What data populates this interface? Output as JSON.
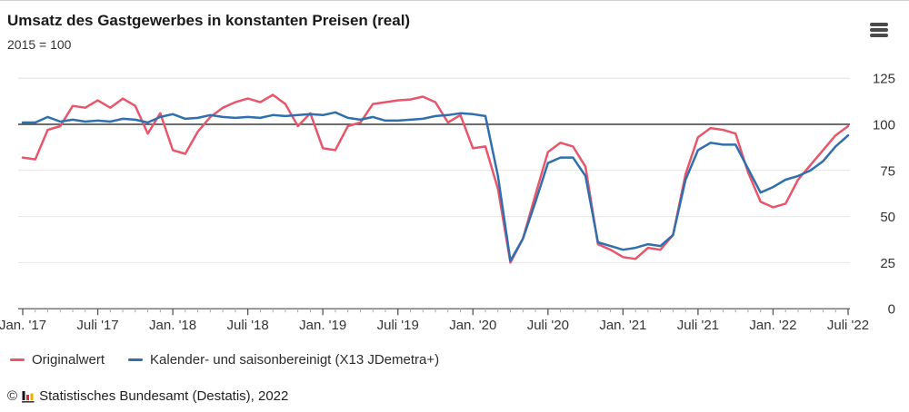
{
  "header": {
    "title": "Umsatz des Gastgewerbes in konstanten Preisen (real)",
    "subtitle": "2015 = 100"
  },
  "footer": {
    "copyright_symbol": "©",
    "text": "Statistisches Bundesamt (Destatis), 2022",
    "logo_colors": [
      "#161616",
      "#dd2b2b",
      "#f0ad00"
    ]
  },
  "chart_data": {
    "type": "line",
    "title": "Umsatz des Gastgewerbes in konstanten Preisen (real)",
    "subtitle": "2015 = 100",
    "grid": true,
    "legend_position": "bottom-left",
    "x_axis": {
      "unit": "month",
      "months_total": 67,
      "start": "Jan. '17",
      "end": "Juli '22",
      "tick_labels": [
        "Jan. '17",
        "Juli '17",
        "Jan. '18",
        "Juli '18",
        "Jan. '19",
        "Juli '19",
        "Jan. '20",
        "Juli '20",
        "Jan. '21",
        "Juli '21",
        "Jan. '22",
        "Juli '22"
      ],
      "tick_month_indices": [
        0,
        6,
        12,
        18,
        24,
        30,
        36,
        42,
        48,
        54,
        60,
        66
      ]
    },
    "y_axis": {
      "side": "right",
      "min": 0,
      "max": 131,
      "ticks": [
        0,
        25,
        50,
        75,
        100,
        125
      ],
      "baseline": 100
    },
    "series": [
      {
        "name": "Originalwert",
        "color": "#e8566b",
        "values": [
          82,
          81,
          97,
          99,
          110,
          109,
          113,
          109,
          114,
          110,
          95,
          106,
          86,
          84,
          96,
          104,
          109,
          112,
          114,
          112,
          116,
          111,
          99,
          106,
          87,
          86,
          99,
          101,
          111,
          112,
          113,
          113.5,
          115,
          112,
          101,
          105,
          87,
          88,
          65,
          25,
          38,
          62,
          85,
          90,
          88,
          77,
          35,
          32,
          28,
          27,
          33,
          32,
          40,
          73,
          93,
          98,
          97,
          95,
          74,
          58,
          55,
          57,
          70,
          78,
          86,
          94,
          99
        ]
      },
      {
        "name": "Kalender- und saisonbereinigt (X13 JDemetra+)",
        "color": "#2f6fad",
        "values": [
          101,
          101,
          104,
          101.5,
          102.5,
          101.5,
          102,
          101.5,
          103,
          102.5,
          101,
          104,
          105.5,
          103,
          103.5,
          105,
          104,
          103.5,
          104,
          103.5,
          105,
          104.5,
          105,
          105.5,
          105,
          106.5,
          103.5,
          102.5,
          104,
          102,
          102,
          102.5,
          103,
          104.5,
          105,
          106,
          105.5,
          104.5,
          72,
          26,
          38,
          58,
          79,
          82,
          82,
          72,
          36,
          34,
          32,
          33,
          35,
          34,
          40,
          70,
          86,
          90,
          89,
          89,
          76,
          63,
          66,
          70,
          72,
          75,
          80,
          88,
          94
        ]
      }
    ]
  }
}
